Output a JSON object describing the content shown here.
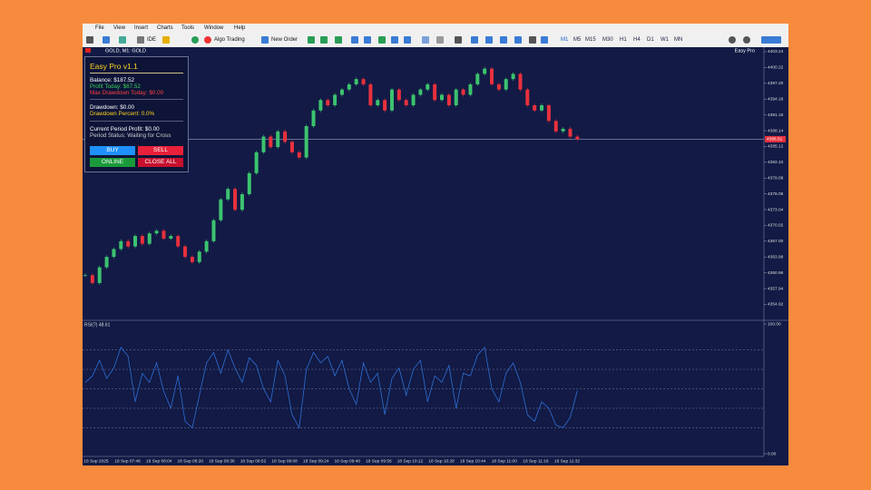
{
  "menu": [
    "File",
    "View",
    "Insert",
    "Charts",
    "Tools",
    "Window",
    "Help"
  ],
  "toolbar": {
    "ide": "IDE",
    "algo_trading": "Algo Trading",
    "new_order": "New Order",
    "timeframes": [
      "M1",
      "M5",
      "M15",
      "M30",
      "H1",
      "H4",
      "D1",
      "W1",
      "MN"
    ]
  },
  "chart_header": "GOLD, M1: GOLD",
  "indicator_name": "Easy Pro",
  "panel": {
    "title": "Easy Pro v1.1",
    "balance": "Balance: $187.52",
    "profit_today": "Profit Today: $67.52",
    "max_drawdown_today": "Max Drawdown Today: $0.00",
    "drawdown": "Drawdown: $0.00",
    "drawdown_percent": "Drawdown Percent: 0.0%",
    "current_period_profit": "Current Period Profit: $0.00",
    "period_status": "Period Status: Waiting for Cross",
    "buttons": {
      "buy": "BUY",
      "sell": "SELL",
      "online": "ONLINE",
      "close_all": "CLOSE ALL"
    }
  },
  "time_labels": [
    "18 Sep 2025",
    "18 Sep 07:48",
    "18 Sep 08:04",
    "18 Sep 08:20",
    "18 Sep 08:36",
    "18 Sep 08:52",
    "18 Sep 09:08",
    "18 Sep 09:24",
    "18 Sep 09:40",
    "18 Sep 09:56",
    "18 Sep 10:12",
    "18 Sep 10:28",
    "18 Sep 10:44",
    "18 Sep 11:00",
    "18 Sep 11:16",
    "18 Sep 11:32"
  ],
  "chart_data": [
    {
      "type": "candlestick",
      "up_color": "#3cc36f",
      "down_color": "#e8313d",
      "close": [
        4360.5,
        4359,
        4362,
        4364,
        4365.5,
        4367,
        4366,
        4368,
        4366.5,
        4368.5,
        4369,
        4367.5,
        4368,
        4366,
        4364,
        4363,
        4365,
        4367,
        4371,
        4375,
        4377,
        4373,
        4376,
        4380,
        4384,
        4387,
        4385,
        4388,
        4386,
        4384,
        4383,
        4389,
        4392,
        4394,
        4393,
        4395,
        4396,
        4397,
        4398,
        4397,
        4393,
        4394,
        4392,
        4396,
        4394,
        4393,
        4395,
        4396,
        4397,
        4394,
        4395,
        4393,
        4396,
        4395,
        4397,
        4399,
        4400,
        4397,
        4396,
        4398,
        4399,
        4396,
        4393,
        4392,
        4393,
        4390,
        4388,
        4388.5,
        4387,
        4386.5
      ],
      "ylim": [
        4352.39,
        4403.93
      ],
      "yticks": [
        4403.24,
        4400.22,
        {
          "value": 4397.2,
          "label": "4397.20"
        },
        4394.18,
        4391.16,
        4388.14,
        4385.12,
        {
          "value": 4382.1,
          "label": "4382.10"
        },
        4379.08,
        4376.06,
        4373.04,
        4370.02,
        {
          "value": 4367,
          "label": "4367.00"
        },
        4363.98,
        4360.96,
        4357.94,
        4354.92
      ],
      "current_price": 4386.51
    },
    {
      "type": "line",
      "title": "RSI(7) 48.61",
      "color": "#2f6fd6",
      "values": [
        55,
        60,
        72,
        58,
        66,
        82,
        75,
        40,
        62,
        55,
        70,
        48,
        35,
        60,
        25,
        20,
        45,
        70,
        78,
        62,
        80,
        66,
        55,
        74,
        68,
        50,
        40,
        72,
        60,
        30,
        20,
        65,
        78,
        70,
        75,
        60,
        72,
        50,
        38,
        70,
        55,
        62,
        30,
        58,
        66,
        45,
        65,
        72,
        40,
        60,
        55,
        68,
        35,
        62,
        60,
        76,
        82,
        50,
        40,
        62,
        70,
        55,
        30,
        25,
        40,
        35,
        22,
        20,
        28,
        48.61
      ],
      "ylim": [
        0,
        100
      ],
      "yticks": [
        {
          "value": 100,
          "label": "100.00"
        },
        {
          "value": 0,
          "label": "0.00"
        }
      ],
      "levels": [
        80,
        65,
        50,
        35,
        20
      ]
    }
  ]
}
